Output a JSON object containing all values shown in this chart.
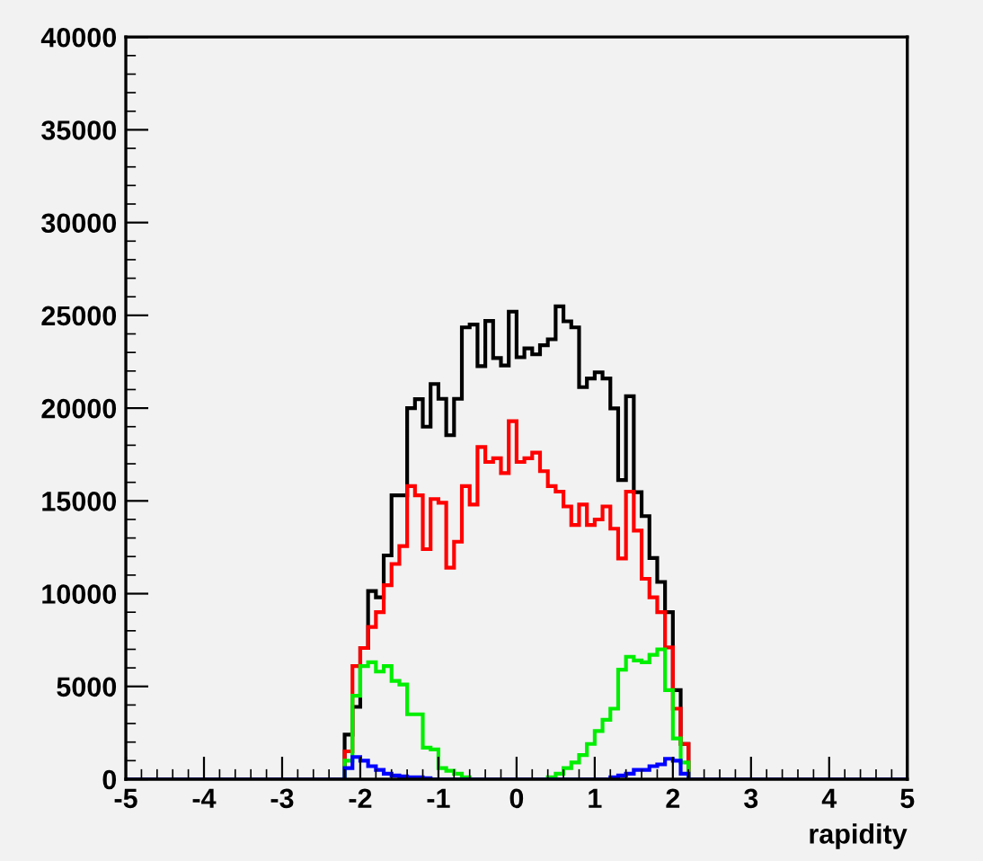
{
  "chart_data": {
    "type": "histogram",
    "xlabel": "rapidity",
    "bins": [
      -5,
      -2.2,
      -2.1,
      -2.0,
      -1.9,
      -1.8,
      -1.7,
      -1.6,
      -1.5,
      -1.4,
      -1.3,
      -1.2,
      -1.1,
      -1.0,
      -0.9,
      -0.8,
      -0.7,
      -0.6,
      -0.5,
      -0.4,
      -0.3,
      -0.2,
      -0.1,
      0.0,
      0.1,
      0.2,
      0.3,
      0.4,
      0.5,
      0.6,
      0.7,
      0.8,
      0.9,
      1.0,
      1.1,
      1.2,
      1.3,
      1.4,
      1.5,
      1.6,
      1.7,
      1.8,
      1.9,
      2.0,
      2.1,
      2.2,
      5
    ],
    "series": [
      {
        "color": "#000000",
        "values": [
          0,
          2400,
          3900,
          7070,
          10140,
          9800,
          12060,
          15300,
          15300,
          20000,
          20480,
          19000,
          21300,
          20500,
          18540,
          20500,
          24350,
          24500,
          22260,
          24700,
          22700,
          22300,
          25200,
          22740,
          23220,
          22900,
          23390,
          23710,
          25480,
          24680,
          24350,
          21130,
          21600,
          21930,
          21600,
          19990,
          16120,
          20640,
          15470,
          14180,
          11920,
          10630,
          9000,
          4800,
          1900,
          0
        ]
      },
      {
        "color": "#ff0000",
        "values": [
          0,
          1500,
          6100,
          7070,
          8200,
          9000,
          10460,
          11600,
          12560,
          15800,
          15300,
          12400,
          15100,
          14900,
          11400,
          12800,
          15800,
          14800,
          17900,
          17100,
          17300,
          16500,
          19300,
          17100,
          17300,
          17600,
          16600,
          15800,
          15500,
          14700,
          13700,
          14800,
          13700,
          14000,
          14700,
          13500,
          11900,
          15500,
          13400,
          10800,
          9800,
          9000,
          7100,
          3800,
          1900,
          0
        ]
      },
      {
        "color": "#00ee00",
        "values": [
          0,
          1000,
          4500,
          6100,
          6300,
          5800,
          6100,
          5300,
          5100,
          3500,
          3500,
          1700,
          1600,
          600,
          450,
          300,
          100,
          0,
          0,
          0,
          0,
          0,
          0,
          0,
          0,
          0,
          0,
          100,
          300,
          600,
          900,
          1300,
          1900,
          2600,
          3200,
          3800,
          5900,
          6600,
          6400,
          6300,
          6700,
          7000,
          4800,
          2200,
          900,
          0
        ]
      },
      {
        "color": "#0000ff",
        "values": [
          0,
          600,
          1200,
          1000,
          700,
          500,
          300,
          200,
          150,
          100,
          100,
          50,
          0,
          0,
          0,
          0,
          0,
          0,
          0,
          0,
          0,
          0,
          0,
          0,
          0,
          0,
          0,
          0,
          0,
          0,
          0,
          0,
          0,
          0,
          0,
          100,
          200,
          300,
          500,
          500,
          700,
          800,
          1100,
          1000,
          300,
          0
        ]
      }
    ],
    "xlim": [
      -5,
      5
    ],
    "xticks": [
      -5,
      -4,
      -3,
      -2,
      -1,
      0,
      1,
      2,
      3,
      4,
      5
    ],
    "ylim": [
      0,
      40000
    ],
    "yticks": [
      0,
      5000,
      10000,
      15000,
      20000,
      25000,
      30000,
      35000,
      40000
    ],
    "grid": false,
    "legend": false
  }
}
